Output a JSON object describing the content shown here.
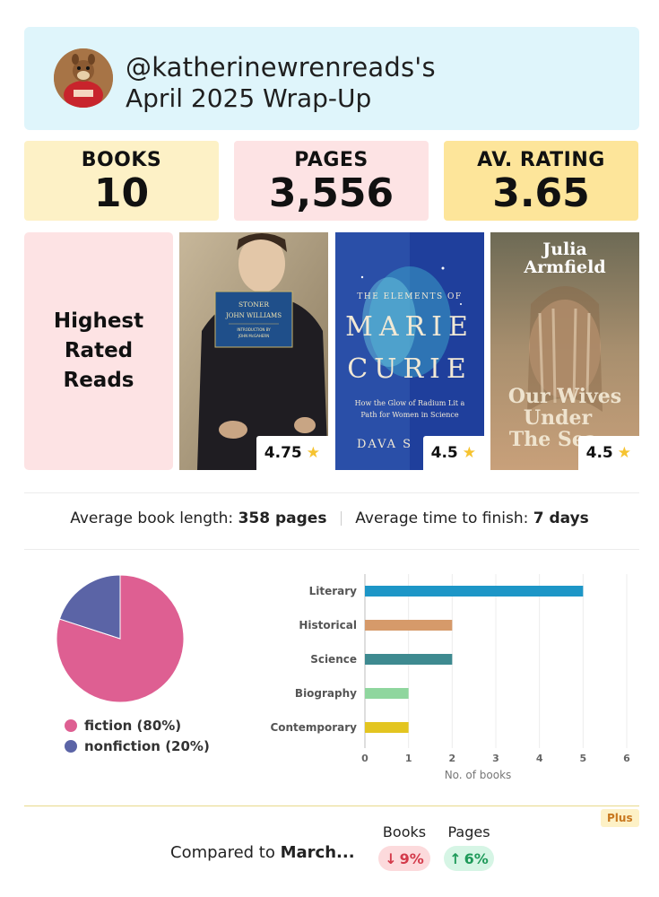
{
  "header": {
    "username": "@katherinewrenreads's",
    "subtitle": "April 2025 Wrap-Up",
    "avatar_icon": "squirrel-avatar"
  },
  "stats": {
    "books": {
      "label": "BOOKS",
      "value": "10"
    },
    "pages": {
      "label": "PAGES",
      "value": "3,556"
    },
    "rating": {
      "label": "AV. RATING",
      "value": "3.65"
    }
  },
  "highest_rated": {
    "label": "Highest Rated Reads",
    "books": [
      {
        "cover_title": "STONER",
        "cover_author": "JOHN WILLIAMS",
        "cover_intro": "INTRODUCTION BY",
        "cover_intro_name": "JOHN McGAHERN",
        "rating": "4.75"
      },
      {
        "cover_top": "THE ELEMENTS OF",
        "cover_title_1": "MARIE",
        "cover_title_2": "CURIE",
        "cover_sub_1": "How the Glow of Radium Lit a",
        "cover_sub_2": "Path for Women in Science",
        "cover_author": "DAVA S",
        "rating": "4.5"
      },
      {
        "cover_author_1": "Julia",
        "cover_author_2": "Armfield",
        "cover_title_1": "Our Wives",
        "cover_title_2": "Under",
        "cover_title_3": "The Sea",
        "rating": "4.5"
      }
    ],
    "star_icon": "star-icon"
  },
  "averages": {
    "length_label": "Average book length:",
    "length_value": "358 pages",
    "time_label": "Average time to finish:",
    "time_value": "7 days"
  },
  "chart_data": [
    {
      "type": "pie",
      "series": [
        {
          "name": "fiction",
          "value": 80,
          "color": "#de5f92"
        },
        {
          "name": "nonfiction",
          "value": 20,
          "color": "#5b64a6"
        }
      ],
      "legend": [
        "fiction (80%)",
        "nonfiction (20%)"
      ]
    },
    {
      "type": "bar",
      "orientation": "horizontal",
      "categories": [
        "Literary",
        "Historical",
        "Science",
        "Biography",
        "Contemporary"
      ],
      "values": [
        5,
        2,
        2,
        1,
        1
      ],
      "colors": [
        "#1d96c7",
        "#d69a6a",
        "#3e8a90",
        "#8fd69e",
        "#e3c520"
      ],
      "xlabel": "No. of books",
      "xlim": [
        0,
        6
      ],
      "xticks": [
        "0",
        "1",
        "2",
        "3",
        "4",
        "5",
        "6"
      ],
      "grid": true
    }
  ],
  "compare": {
    "text_prefix": "Compared to",
    "text_month": "March...",
    "badge": "Plus",
    "books_label": "Books",
    "books_value": "9%",
    "books_arrow": "↓",
    "pages_label": "Pages",
    "pages_value": "6%",
    "pages_arrow": "↑"
  }
}
